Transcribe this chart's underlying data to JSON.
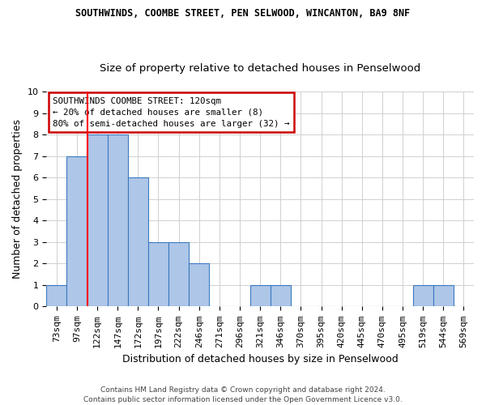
{
  "title1": "SOUTHWINDS, COOMBE STREET, PEN SELWOOD, WINCANTON, BA9 8NF",
  "title2": "Size of property relative to detached houses in Penselwood",
  "xlabel": "Distribution of detached houses by size in Penselwood",
  "ylabel": "Number of detached properties",
  "categories": [
    "73sqm",
    "97sqm",
    "122sqm",
    "147sqm",
    "172sqm",
    "197sqm",
    "222sqm",
    "246sqm",
    "271sqm",
    "296sqm",
    "321sqm",
    "346sqm",
    "370sqm",
    "395sqm",
    "420sqm",
    "445sqm",
    "470sqm",
    "495sqm",
    "519sqm",
    "544sqm",
    "569sqm"
  ],
  "values": [
    1,
    7,
    8,
    8,
    6,
    3,
    3,
    2,
    0,
    0,
    1,
    1,
    0,
    0,
    0,
    0,
    0,
    0,
    1,
    1,
    0
  ],
  "bar_color": "#aec6e8",
  "bar_edge_color": "#3a7abf",
  "red_line_index": 2,
  "ylim": [
    0,
    10
  ],
  "yticks": [
    0,
    1,
    2,
    3,
    4,
    5,
    6,
    7,
    8,
    9,
    10
  ],
  "annotation_title": "SOUTHWINDS COOMBE STREET: 120sqm",
  "annotation_line1": "← 20% of detached houses are smaller (8)",
  "annotation_line2": "80% of semi-detached houses are larger (32) →",
  "annotation_box_color": "#ffffff",
  "annotation_box_edge_color": "#cc0000",
  "footer1": "Contains HM Land Registry data © Crown copyright and database right 2024.",
  "footer2": "Contains public sector information licensed under the Open Government Licence v3.0.",
  "background_color": "#ffffff",
  "grid_color": "#d0d0d0",
  "title1_fontsize": 8.5,
  "title2_fontsize": 9.5,
  "xlabel_fontsize": 9,
  "ylabel_fontsize": 9,
  "tick_fontsize": 8,
  "footer_fontsize": 6.5
}
